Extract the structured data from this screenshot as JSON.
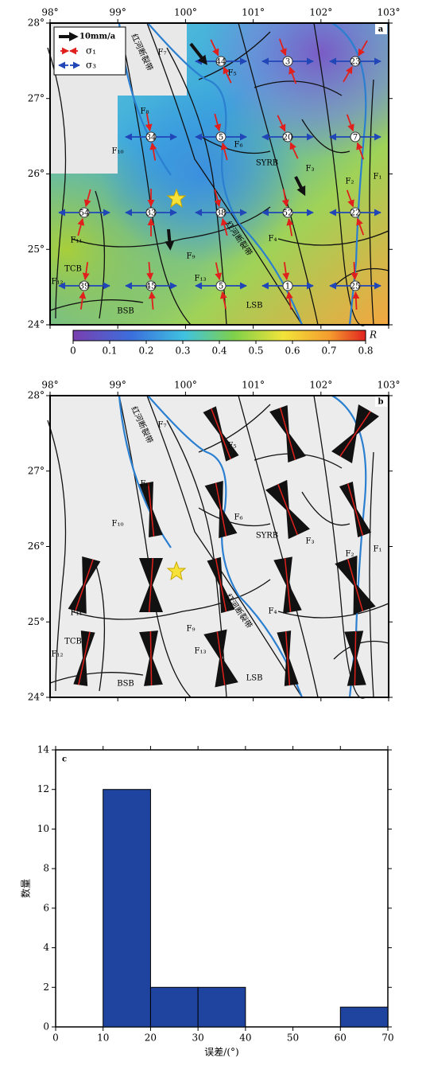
{
  "maps": [
    {
      "panel": "a",
      "xlim": [
        98,
        103
      ],
      "ylim": [
        24,
        28
      ],
      "xticks": [
        {
          "value": 98,
          "label": "98°"
        },
        {
          "value": 99,
          "label": "99°"
        },
        {
          "value": 100,
          "label": "100°"
        },
        {
          "value": 101,
          "label": "101°"
        },
        {
          "value": 102,
          "label": "102°"
        },
        {
          "value": 103,
          "label": "103°"
        }
      ],
      "yticks": [
        {
          "value": 28,
          "label": "28°"
        },
        {
          "value": 27,
          "label": "27°"
        },
        {
          "value": 26,
          "label": "26°"
        },
        {
          "value": 25,
          "label": "25°"
        },
        {
          "value": 24,
          "label": "24°"
        }
      ],
      "legend": {
        "arrow": "10mm/a",
        "sigma1": "σ₁",
        "sigma3": "σ₃"
      },
      "stations": [
        44,
        3,
        23,
        34,
        5,
        20,
        7,
        54,
        33,
        38,
        52,
        22,
        39,
        45,
        5,
        1,
        25
      ],
      "faults": [
        "F₁",
        "F₂",
        "F₃",
        "F₄",
        "F₅",
        "F₆",
        "F₇",
        "F₈",
        "F₉",
        "F₁₀",
        "F₁₁",
        "F₁₂",
        "F₁₃"
      ],
      "regions": [
        "SYRB",
        "TCB",
        "BSB",
        "LSB"
      ],
      "river_labels": [
        "红河断裂带",
        "红河断裂带"
      ],
      "colorbar": {
        "lim": [
          0,
          0.8
        ],
        "ticks": [
          0,
          0.1,
          0.2,
          0.3,
          0.4,
          0.5,
          0.6,
          0.7,
          0.8
        ],
        "label": "R"
      }
    },
    {
      "panel": "b",
      "xlim": [
        98,
        103
      ],
      "ylim": [
        24,
        28
      ],
      "xticks": [
        {
          "value": 98,
          "label": "98°"
        },
        {
          "value": 99,
          "label": "99°"
        },
        {
          "value": 100,
          "label": "100°"
        },
        {
          "value": 101,
          "label": "101°"
        },
        {
          "value": 102,
          "label": "102°"
        },
        {
          "value": 103,
          "label": "103°"
        }
      ],
      "yticks": [
        {
          "value": 28,
          "label": "28°"
        },
        {
          "value": 27,
          "label": "27°"
        },
        {
          "value": 26,
          "label": "26°"
        },
        {
          "value": 25,
          "label": "25°"
        },
        {
          "value": 24,
          "label": "24°"
        }
      ],
      "faults": [
        "F₁",
        "F₂",
        "F₃",
        "F₄",
        "F₅",
        "F₆",
        "F₇",
        "F₈",
        "F₉",
        "F₁₀",
        "F₁₁",
        "F₁₂",
        "F₁₃"
      ],
      "regions": [
        "SYRB",
        "TCB",
        "BSB",
        "LSB"
      ],
      "river_labels": [
        "红河断裂带",
        "红河断裂带"
      ]
    }
  ],
  "chart_data": {
    "type": "histogram",
    "panel_label": "c",
    "bins": [
      0,
      10,
      20,
      30,
      40,
      50,
      60,
      70
    ],
    "values": [
      0,
      12,
      2,
      2,
      0,
      0,
      1
    ],
    "color": "#1f44a0",
    "xlim": [
      0,
      70
    ],
    "ylim": [
      0,
      14
    ],
    "xticks": [
      0,
      10,
      20,
      30,
      40,
      50,
      60,
      70
    ],
    "yticks": [
      0,
      2,
      4,
      6,
      8,
      10,
      12,
      14
    ],
    "xlabel": "误差/(°)",
    "ylabel": "数量"
  }
}
